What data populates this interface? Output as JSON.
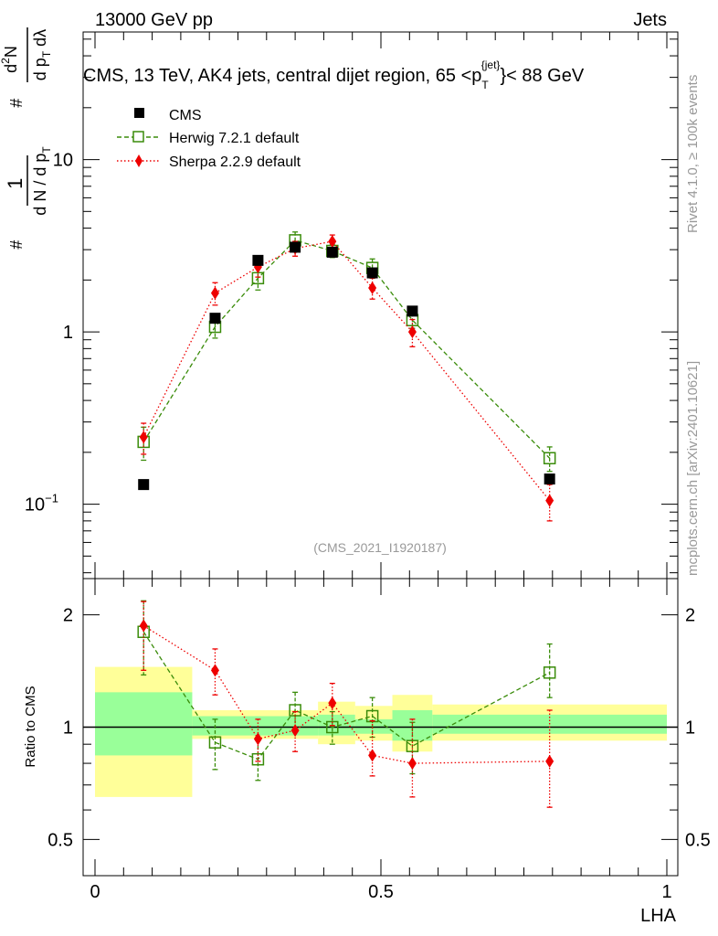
{
  "header": {
    "energy_label": "13000 GeV pp",
    "process_label": "Jets"
  },
  "side_labels": {
    "rivet": "Rivet 4.1.0, ≥ 100k events",
    "mcplots": "mcplots.cern.ch [arXiv:2401.10621]"
  },
  "colors": {
    "cms": "#000000",
    "herwig": "#3a8c0a",
    "sherpa": "#ee0000",
    "band_outer": "#ffff99",
    "band_inner": "#99ff99",
    "watermark": "#999999"
  },
  "chart_data": [
    {
      "type": "scatter",
      "panel": "main",
      "title": "CMS, 13 TeV, AK4 jets, central dijet region, 65 <p",
      "title_sup": "{jet}",
      "title_sub": "T",
      "title_tail": "}< 88 GeV",
      "ylabel": "# 1/(dN/dp_T) # d²N/(dp_T dλ)",
      "yscale": "log",
      "ylim": [
        0.037,
        55
      ],
      "xlim": [
        -0.02,
        1.02
      ],
      "yticks": [
        {
          "value": 0.1,
          "label": "10",
          "sup": "−1"
        },
        {
          "value": 1,
          "label": "1",
          "sup": ""
        },
        {
          "value": 10,
          "label": "10",
          "sup": ""
        }
      ],
      "watermark": "(CMS_2021_I1920187)",
      "legend": {
        "position": "top-left",
        "cms": "CMS",
        "herwig": "Herwig 7.2.1 default",
        "sherpa": "Sherpa 2.2.9 default"
      },
      "series": [
        {
          "name": "CMS",
          "style": "square",
          "x": [
            0.085,
            0.21,
            0.285,
            0.35,
            0.415,
            0.485,
            0.555,
            0.795
          ],
          "y": [
            0.13,
            1.2,
            2.6,
            3.1,
            2.9,
            2.2,
            1.32,
            0.14
          ],
          "err": [
            0,
            0,
            0,
            0,
            0,
            0,
            0,
            0
          ]
        },
        {
          "name": "Herwig 7.2.1 default",
          "style": "open-square-dashed",
          "x": [
            0.085,
            0.21,
            0.285,
            0.35,
            0.415,
            0.485,
            0.555,
            0.795
          ],
          "y": [
            0.23,
            1.07,
            2.05,
            3.4,
            2.95,
            2.35,
            1.17,
            0.185
          ],
          "err_up": [
            0.05,
            0.15,
            0.3,
            0.4,
            0.25,
            0.3,
            0.12,
            0.03
          ],
          "err_dn": [
            0.05,
            0.15,
            0.3,
            0.4,
            0.25,
            0.3,
            0.12,
            0.03
          ]
        },
        {
          "name": "Sherpa 2.2.9 default",
          "style": "diamond-dotted",
          "x": [
            0.085,
            0.21,
            0.285,
            0.35,
            0.415,
            0.485,
            0.555,
            0.795
          ],
          "y": [
            0.245,
            1.68,
            2.38,
            3.05,
            3.35,
            1.8,
            1.0,
            0.105
          ],
          "err_up": [
            0.05,
            0.25,
            0.3,
            0.3,
            0.3,
            0.25,
            0.18,
            0.025
          ],
          "err_dn": [
            0.05,
            0.25,
            0.3,
            0.3,
            0.3,
            0.25,
            0.18,
            0.025
          ]
        }
      ]
    },
    {
      "type": "scatter",
      "panel": "ratio",
      "ylabel": "Ratio to CMS",
      "xlabel": "LHA",
      "yscale": "log",
      "ylim": [
        0.4,
        2.5
      ],
      "xlim": [
        -0.02,
        1.02
      ],
      "xticks": [
        {
          "value": 0,
          "label": "0"
        },
        {
          "value": 0.5,
          "label": "0.5"
        },
        {
          "value": 1,
          "label": "1"
        }
      ],
      "yticks": [
        {
          "value": 0.5,
          "label": "0.5"
        },
        {
          "value": 1,
          "label": "1"
        },
        {
          "value": 2,
          "label": "2"
        }
      ],
      "bands": [
        {
          "x0": 0.0,
          "x1": 0.17,
          "outer": [
            0.65,
            1.45
          ],
          "inner": [
            0.84,
            1.24
          ]
        },
        {
          "x0": 0.17,
          "x1": 0.39,
          "outer": [
            0.93,
            1.11
          ],
          "inner": [
            0.95,
            1.07
          ]
        },
        {
          "x0": 0.39,
          "x1": 0.455,
          "outer": [
            0.9,
            1.17
          ],
          "inner": [
            0.95,
            1.08
          ]
        },
        {
          "x0": 0.455,
          "x1": 0.52,
          "outer": [
            0.92,
            1.14
          ],
          "inner": [
            0.96,
            1.05
          ]
        },
        {
          "x0": 0.52,
          "x1": 0.59,
          "outer": [
            0.86,
            1.22
          ],
          "inner": [
            0.92,
            1.11
          ]
        },
        {
          "x0": 0.59,
          "x1": 1.0,
          "outer": [
            0.92,
            1.15
          ],
          "inner": [
            0.96,
            1.08
          ]
        }
      ],
      "series": [
        {
          "name": "Herwig 7.2.1 default",
          "style": "open-square-dashed",
          "x": [
            0.085,
            0.21,
            0.285,
            0.35,
            0.415,
            0.485,
            0.555,
            0.795
          ],
          "y": [
            1.8,
            0.91,
            0.82,
            1.11,
            1.0,
            1.07,
            0.89,
            1.4
          ],
          "err_up": [
            0.38,
            0.14,
            0.1,
            0.13,
            0.1,
            0.13,
            0.14,
            0.27
          ],
          "err_dn": [
            0.42,
            0.14,
            0.1,
            0.13,
            0.1,
            0.13,
            0.14,
            0.2
          ]
        },
        {
          "name": "Sherpa 2.2.9 default",
          "style": "diamond-dotted",
          "x": [
            0.085,
            0.21,
            0.285,
            0.35,
            0.415,
            0.485,
            0.555,
            0.795
          ],
          "y": [
            1.87,
            1.42,
            0.93,
            0.98,
            1.16,
            0.84,
            0.8,
            0.81
          ],
          "err_up": [
            0.3,
            0.2,
            0.12,
            0.12,
            0.15,
            0.2,
            0.25,
            0.3
          ],
          "err_dn": [
            0.45,
            0.2,
            0.12,
            0.12,
            0.15,
            0.1,
            0.15,
            0.2
          ]
        }
      ]
    }
  ]
}
